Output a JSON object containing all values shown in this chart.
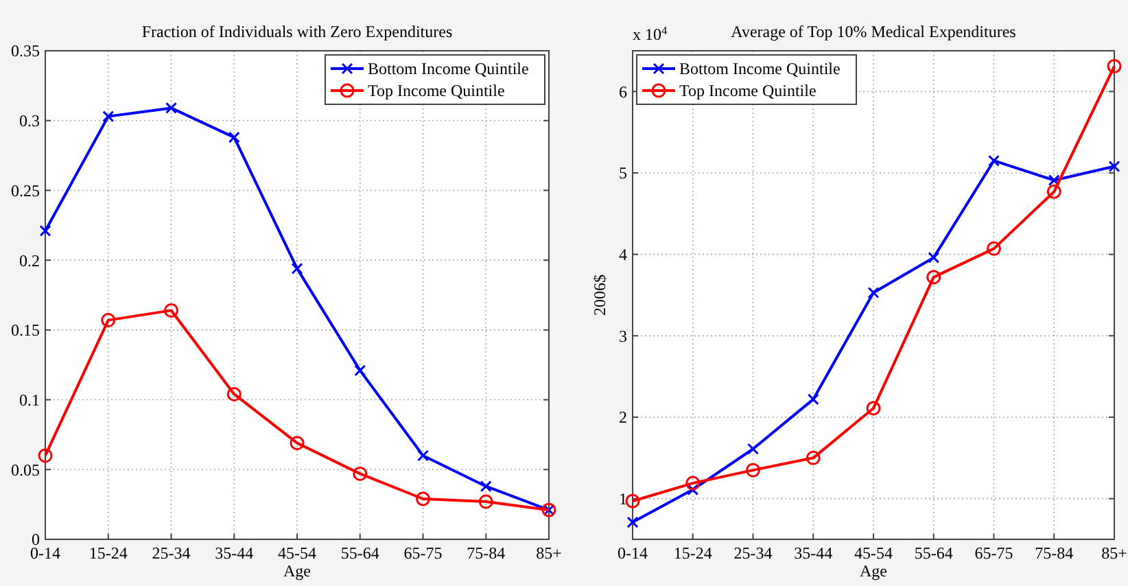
{
  "chart_data": [
    {
      "type": "line",
      "title": "Fraction of Individuals with Zero Expenditures",
      "xlabel": "Age",
      "categories": [
        "0-14",
        "15-24",
        "25-34",
        "35-44",
        "45-54",
        "55-64",
        "65-75",
        "75-84",
        "85+"
      ],
      "series": [
        {
          "name": "Bottom Income Quintile",
          "color": "#0000ff",
          "marker": "cross",
          "values": [
            0.221,
            0.303,
            0.309,
            0.288,
            0.194,
            0.121,
            0.06,
            0.038,
            0.021
          ]
        },
        {
          "name": "Top Income Quintile",
          "color": "#ff0000",
          "marker": "circle",
          "values": [
            0.06,
            0.157,
            0.164,
            0.104,
            0.069,
            0.047,
            0.029,
            0.027,
            0.021
          ]
        }
      ],
      "ylim": [
        0,
        0.35
      ],
      "yticks": [
        0,
        0.05,
        0.1,
        0.15,
        0.2,
        0.25,
        0.3,
        0.35
      ],
      "grid": true,
      "legend": "top right"
    },
    {
      "type": "line",
      "title": "Average of Top 10% Medical Expenditures",
      "xlabel": "Age",
      "ylabel": "2006$",
      "annotations": [
        "x 10$^{4}$"
      ],
      "categories": [
        "0-14",
        "15-24",
        "25-34",
        "35-44",
        "45-54",
        "55-64",
        "65-75",
        "75-84",
        "85+"
      ],
      "series": [
        {
          "name": "Bottom Income Quintile",
          "color": "#0000ff",
          "marker": "cross",
          "values": [
            0.71,
            1.11,
            1.61,
            2.22,
            3.53,
            3.96,
            5.15,
            4.91,
            5.08
          ]
        },
        {
          "name": "Top Income Quintile",
          "color": "#ff0000",
          "marker": "circle",
          "values": [
            0.97,
            1.19,
            1.35,
            1.5,
            2.11,
            3.72,
            4.07,
            4.77,
            6.31
          ]
        }
      ],
      "ylim": [
        0.5,
        6.5
      ],
      "yticks": [
        1,
        2,
        3,
        4,
        5,
        6
      ],
      "grid": true,
      "legend": "top left"
    }
  ]
}
